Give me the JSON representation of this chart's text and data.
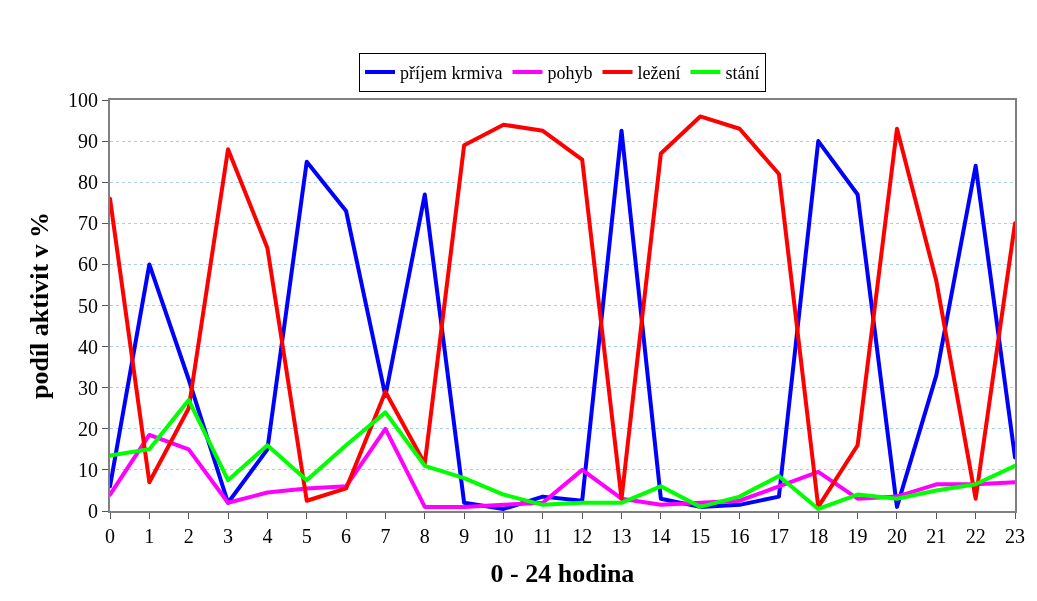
{
  "chart_data": {
    "type": "line",
    "xlabel": "0 - 24 hodina",
    "ylabel": "podíl aktivit v %",
    "x": [
      0,
      1,
      2,
      3,
      4,
      5,
      6,
      7,
      8,
      9,
      10,
      11,
      12,
      13,
      14,
      15,
      16,
      17,
      18,
      19,
      20,
      21,
      22,
      23
    ],
    "series": [
      {
        "name": "příjem krmiva",
        "color": "#0000ff",
        "values": [
          6,
          60,
          32,
          2,
          15,
          85,
          73,
          28,
          77,
          2,
          0.5,
          3.5,
          2.5,
          92.5,
          3,
          1,
          1.5,
          3.5,
          90,
          77,
          1,
          33,
          84,
          13
        ]
      },
      {
        "name": "pohyb",
        "color": "#ff00ff",
        "values": [
          4,
          18.5,
          15,
          2,
          4.5,
          5.5,
          6,
          20,
          1,
          1,
          1.5,
          2,
          10,
          3,
          1.5,
          2,
          2.5,
          6,
          9.5,
          3,
          3.5,
          6.5,
          6.5,
          7
        ]
      },
      {
        "name": "ležení",
        "color": "#ff0000",
        "values": [
          76,
          7,
          25,
          88,
          64,
          2.5,
          5.5,
          29,
          11.5,
          89,
          94,
          92.5,
          85.5,
          3,
          87,
          96,
          93,
          82,
          1,
          16,
          93,
          56,
          3,
          70
        ]
      },
      {
        "name": "stání",
        "color": "#00ff00",
        "values": [
          13.5,
          15,
          27,
          7.5,
          16,
          7.5,
          16,
          24,
          11,
          8,
          4,
          1.5,
          2,
          2,
          6,
          1,
          3.5,
          8.5,
          0.5,
          4,
          3,
          5,
          6.5,
          11
        ]
      }
    ],
    "xlim": [
      0,
      23
    ],
    "xticks": [
      0,
      1,
      2,
      3,
      4,
      5,
      6,
      7,
      8,
      9,
      10,
      11,
      12,
      13,
      14,
      15,
      16,
      17,
      18,
      19,
      20,
      21,
      22,
      23
    ],
    "ylim": [
      0,
      100
    ],
    "yticks": [
      0,
      10,
      20,
      30,
      40,
      50,
      60,
      70,
      80,
      90,
      100
    ],
    "grid": "y",
    "legend": "top",
    "marker": "none",
    "line_style": "solid"
  }
}
